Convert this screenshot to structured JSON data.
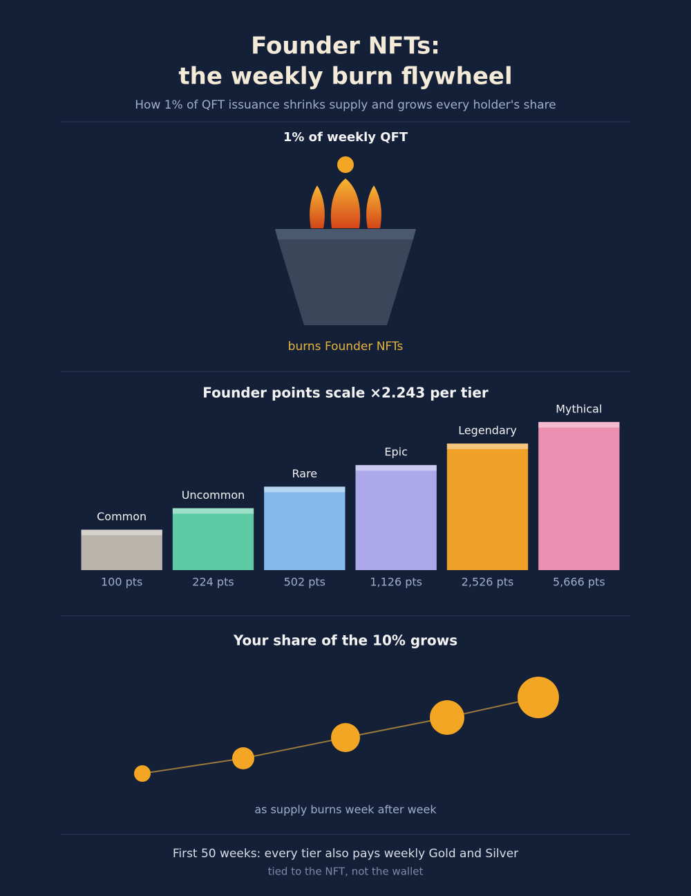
{
  "header": {
    "title": [
      "Founder NFTs:",
      "the weekly burn flywheel"
    ],
    "subtitle": "How 1% of QFT issuance shrinks supply and grows every holder's share"
  },
  "burn": {
    "label": "1% of weekly QFT",
    "caption": "burns Founder NFTs"
  },
  "chart_data": {
    "type": "bar",
    "title": "Founder points scale ×2.243 per tier",
    "categories": [
      "Common",
      "Uncommon",
      "Rare",
      "Epic",
      "Legendary",
      "Mythical"
    ],
    "values": [
      100,
      224,
      502,
      1126,
      2526,
      5666
    ],
    "value_labels": [
      "100 pts",
      "224 pts",
      "502 pts",
      "1,126 pts",
      "2,526 pts",
      "5,666 pts"
    ],
    "colors": [
      "#b9b4ab",
      "#5ccaa4",
      "#86b9ec",
      "#ada8ea",
      "#eea027",
      "#ec8fb0"
    ],
    "log_scale": true,
    "ylim": [
      22,
      10000
    ],
    "grid": false
  },
  "share": {
    "title": "Your share of the 10% grows",
    "caption": "as supply burns week after week"
  },
  "footer": {
    "line1": "First 50 weeks: every tier also pays weekly Gold and Silver",
    "line2": "tied to the NFT, not the wallet"
  }
}
